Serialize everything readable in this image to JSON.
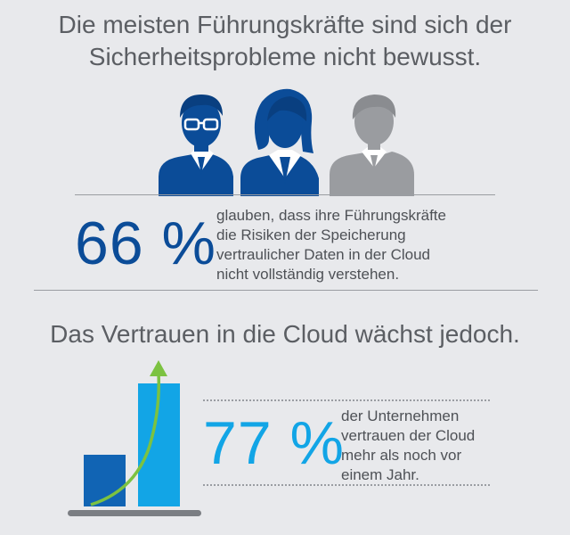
{
  "headline1": {
    "line1": "Die meisten Führungskräfte sind sich der",
    "line2": "Sicherheitsprobleme nicht bewusst."
  },
  "stat1": {
    "value": "66 %",
    "text": [
      "glauben, dass ihre Führungskräfte",
      "die Risiken der Speicherung",
      "vertraulicher Daten in der Cloud",
      "nicht vollständig verstehen."
    ]
  },
  "headline2": "Das Vertrauen in die Cloud wächst jedoch.",
  "stat2": {
    "value": "77 %",
    "text": [
      "der Unternehmen",
      "vertrauen der Cloud",
      "mehr als noch vor",
      "einem Jahr."
    ]
  },
  "colors": {
    "dark_blue": "#0b4c98",
    "mid_blue": "#1164b4",
    "light_blue": "#12a5e6",
    "gray_person": "#9a9ca0",
    "green_arrow": "#7cc241",
    "text_gray": "#5b5e63"
  }
}
